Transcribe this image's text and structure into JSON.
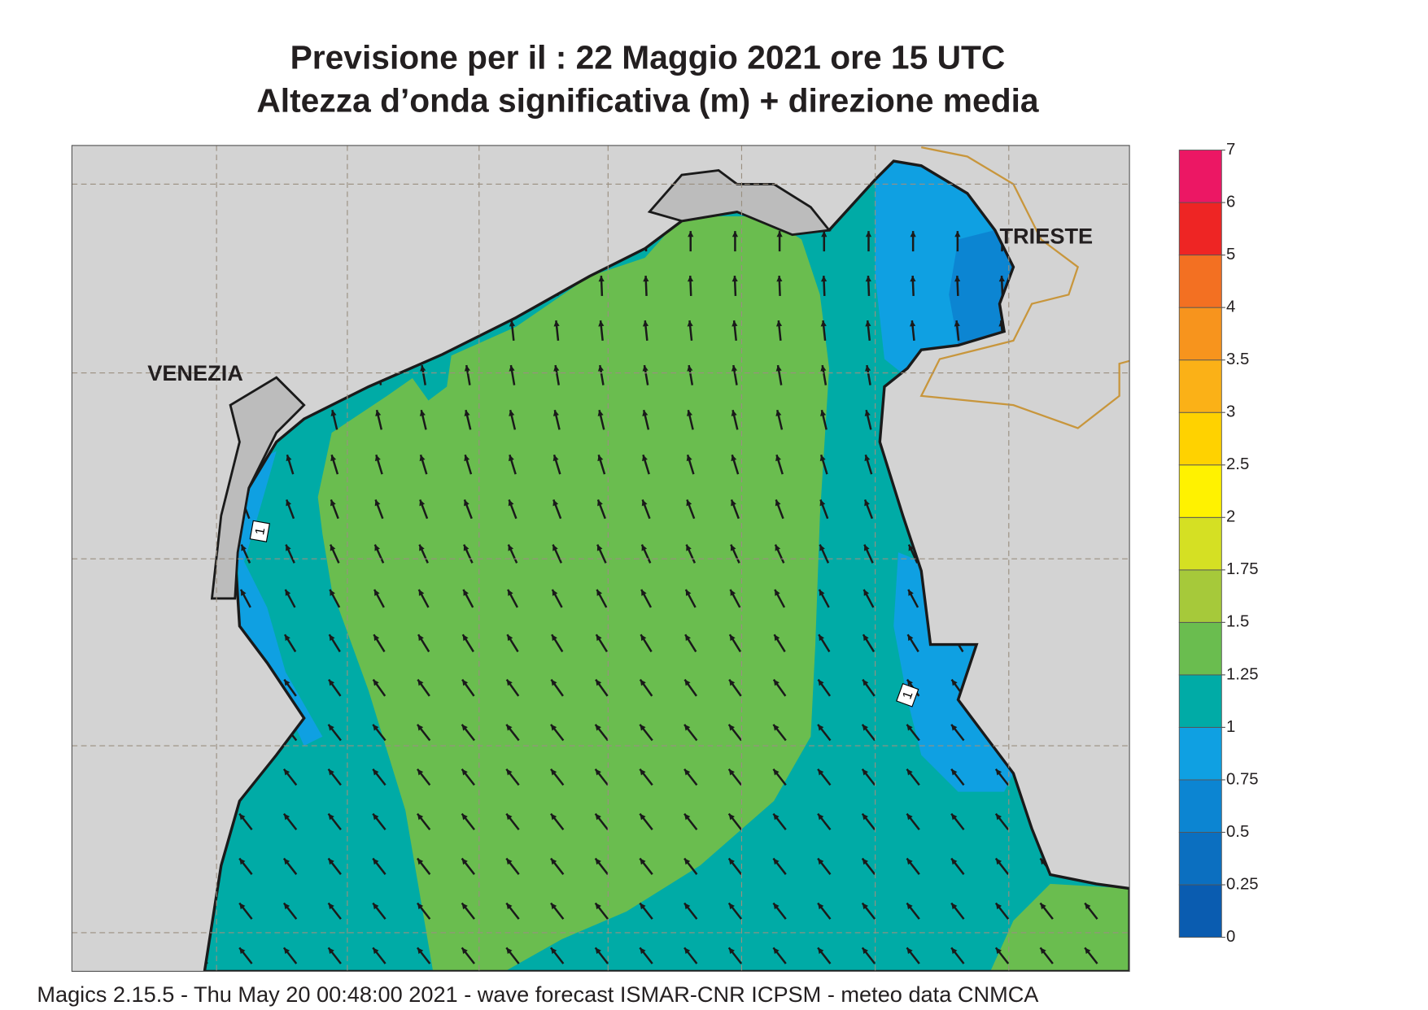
{
  "header": {
    "title": "Previsione per il  :  22   Maggio  2021   ore 15 UTC",
    "subtitle": "Altezza d’onda significativa (m) + direzione media"
  },
  "places": [
    "VENEZIA",
    "TRIESTE"
  ],
  "contour_labels": [
    1,
    1
  ],
  "legend": {
    "ticks": [
      0,
      0.25,
      0.5,
      0.75,
      1,
      1.25,
      1.5,
      1.75,
      2,
      2.5,
      3,
      3.5,
      4,
      5,
      6,
      7
    ],
    "colors": [
      "#0a5cb0",
      "#0b6fc0",
      "#0c85d2",
      "#0fa0e2",
      "#00aba6",
      "#6abd4f",
      "#a6c93a",
      "#d5e023",
      "#fff200",
      "#ffd200",
      "#fbb117",
      "#f7941d",
      "#f37022",
      "#ee2524",
      "#ec1764"
    ]
  },
  "footer": "Magics 2.15.5 - Thu May 20 00:48:00 2021 - wave forecast  ISMAR-CNR  ICPSM - meteo data   CNMCA"
}
